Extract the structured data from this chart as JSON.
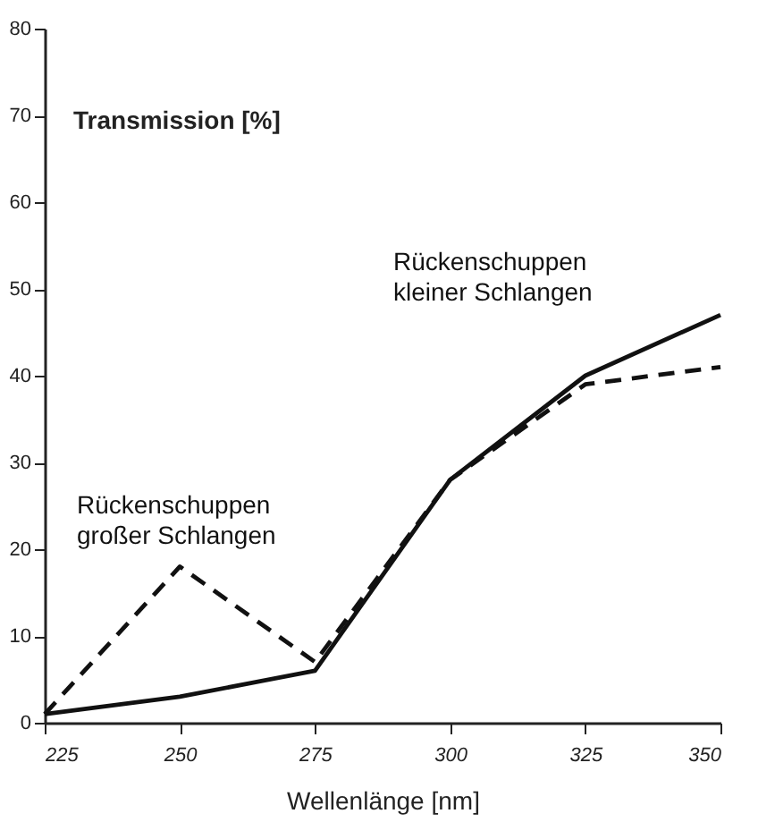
{
  "chart_data": {
    "type": "line",
    "xlabel": "Wellenlänge [nm]",
    "ylabel": "Transmission [%]",
    "x": [
      225,
      250,
      275,
      300,
      325,
      350
    ],
    "series": [
      {
        "name": "Rückenschuppen kleiner Schlangen",
        "color": "#111111",
        "line_style": "solid",
        "values": [
          1,
          3,
          6,
          28,
          40,
          47
        ]
      },
      {
        "name": "Rückenschuppen großer Schlangen",
        "color": "#111111",
        "line_style": "dashed",
        "values": [
          1,
          18,
          7,
          28,
          39,
          41
        ]
      }
    ],
    "xlim": [
      225,
      350
    ],
    "xticks": [
      225,
      250,
      275,
      300,
      325,
      350
    ],
    "ylim": [
      0,
      80
    ],
    "yticks": [
      0,
      10,
      20,
      30,
      40,
      50,
      60,
      70,
      80
    ],
    "grid": false,
    "marker": "none"
  }
}
